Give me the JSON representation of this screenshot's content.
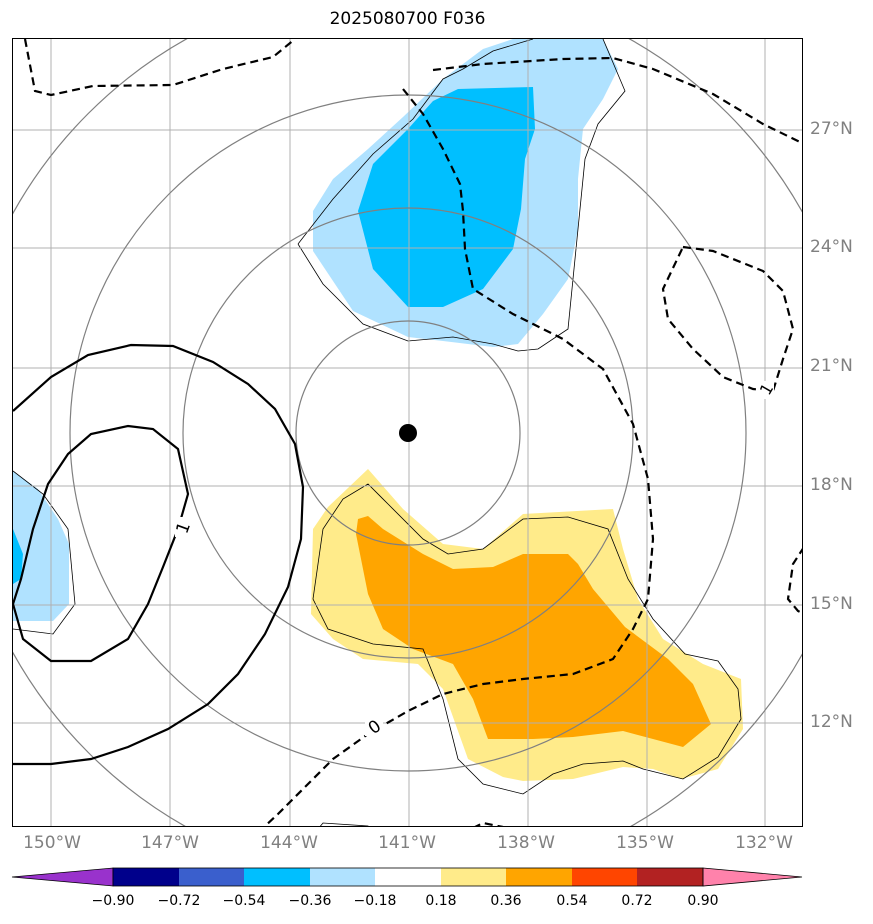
{
  "title": "2025080700 F036",
  "axes": {
    "lat_labels": [
      "27°N",
      "24°N",
      "21°N",
      "18°N",
      "15°N",
      "12°N"
    ],
    "lon_labels": [
      "150°W",
      "147°W",
      "144°W",
      "141°W",
      "138°W",
      "135°W",
      "132°W"
    ]
  },
  "contour_labels": {
    "dashed_zero": "0",
    "dashed_right": "1",
    "solid_left": "1"
  },
  "storm_center": {
    "lat": 19.4,
    "lon": -141.0,
    "symbol": "black-dot"
  },
  "colorbar": {
    "ticks": [
      "−0.90",
      "−0.72",
      "−0.54",
      "−0.36",
      "−0.18",
      "0.18",
      "0.36",
      "0.54",
      "0.72",
      "0.90"
    ],
    "colors": [
      "#9932cc",
      "#00008b",
      "#3a5fcd",
      "#00bfff",
      "#b0e2ff",
      "#ffffff",
      "#ffeb8a",
      "#ffa500",
      "#ff4500",
      "#b22222",
      "#ff82ab"
    ]
  },
  "colors": {
    "light_blue": "#b0e2ff",
    "deep_sky_blue": "#00bfff",
    "light_yellow": "#ffeb8a",
    "orange": "#ffa500",
    "gridline": "#b0b0b0",
    "range_ring": "#808080"
  }
}
